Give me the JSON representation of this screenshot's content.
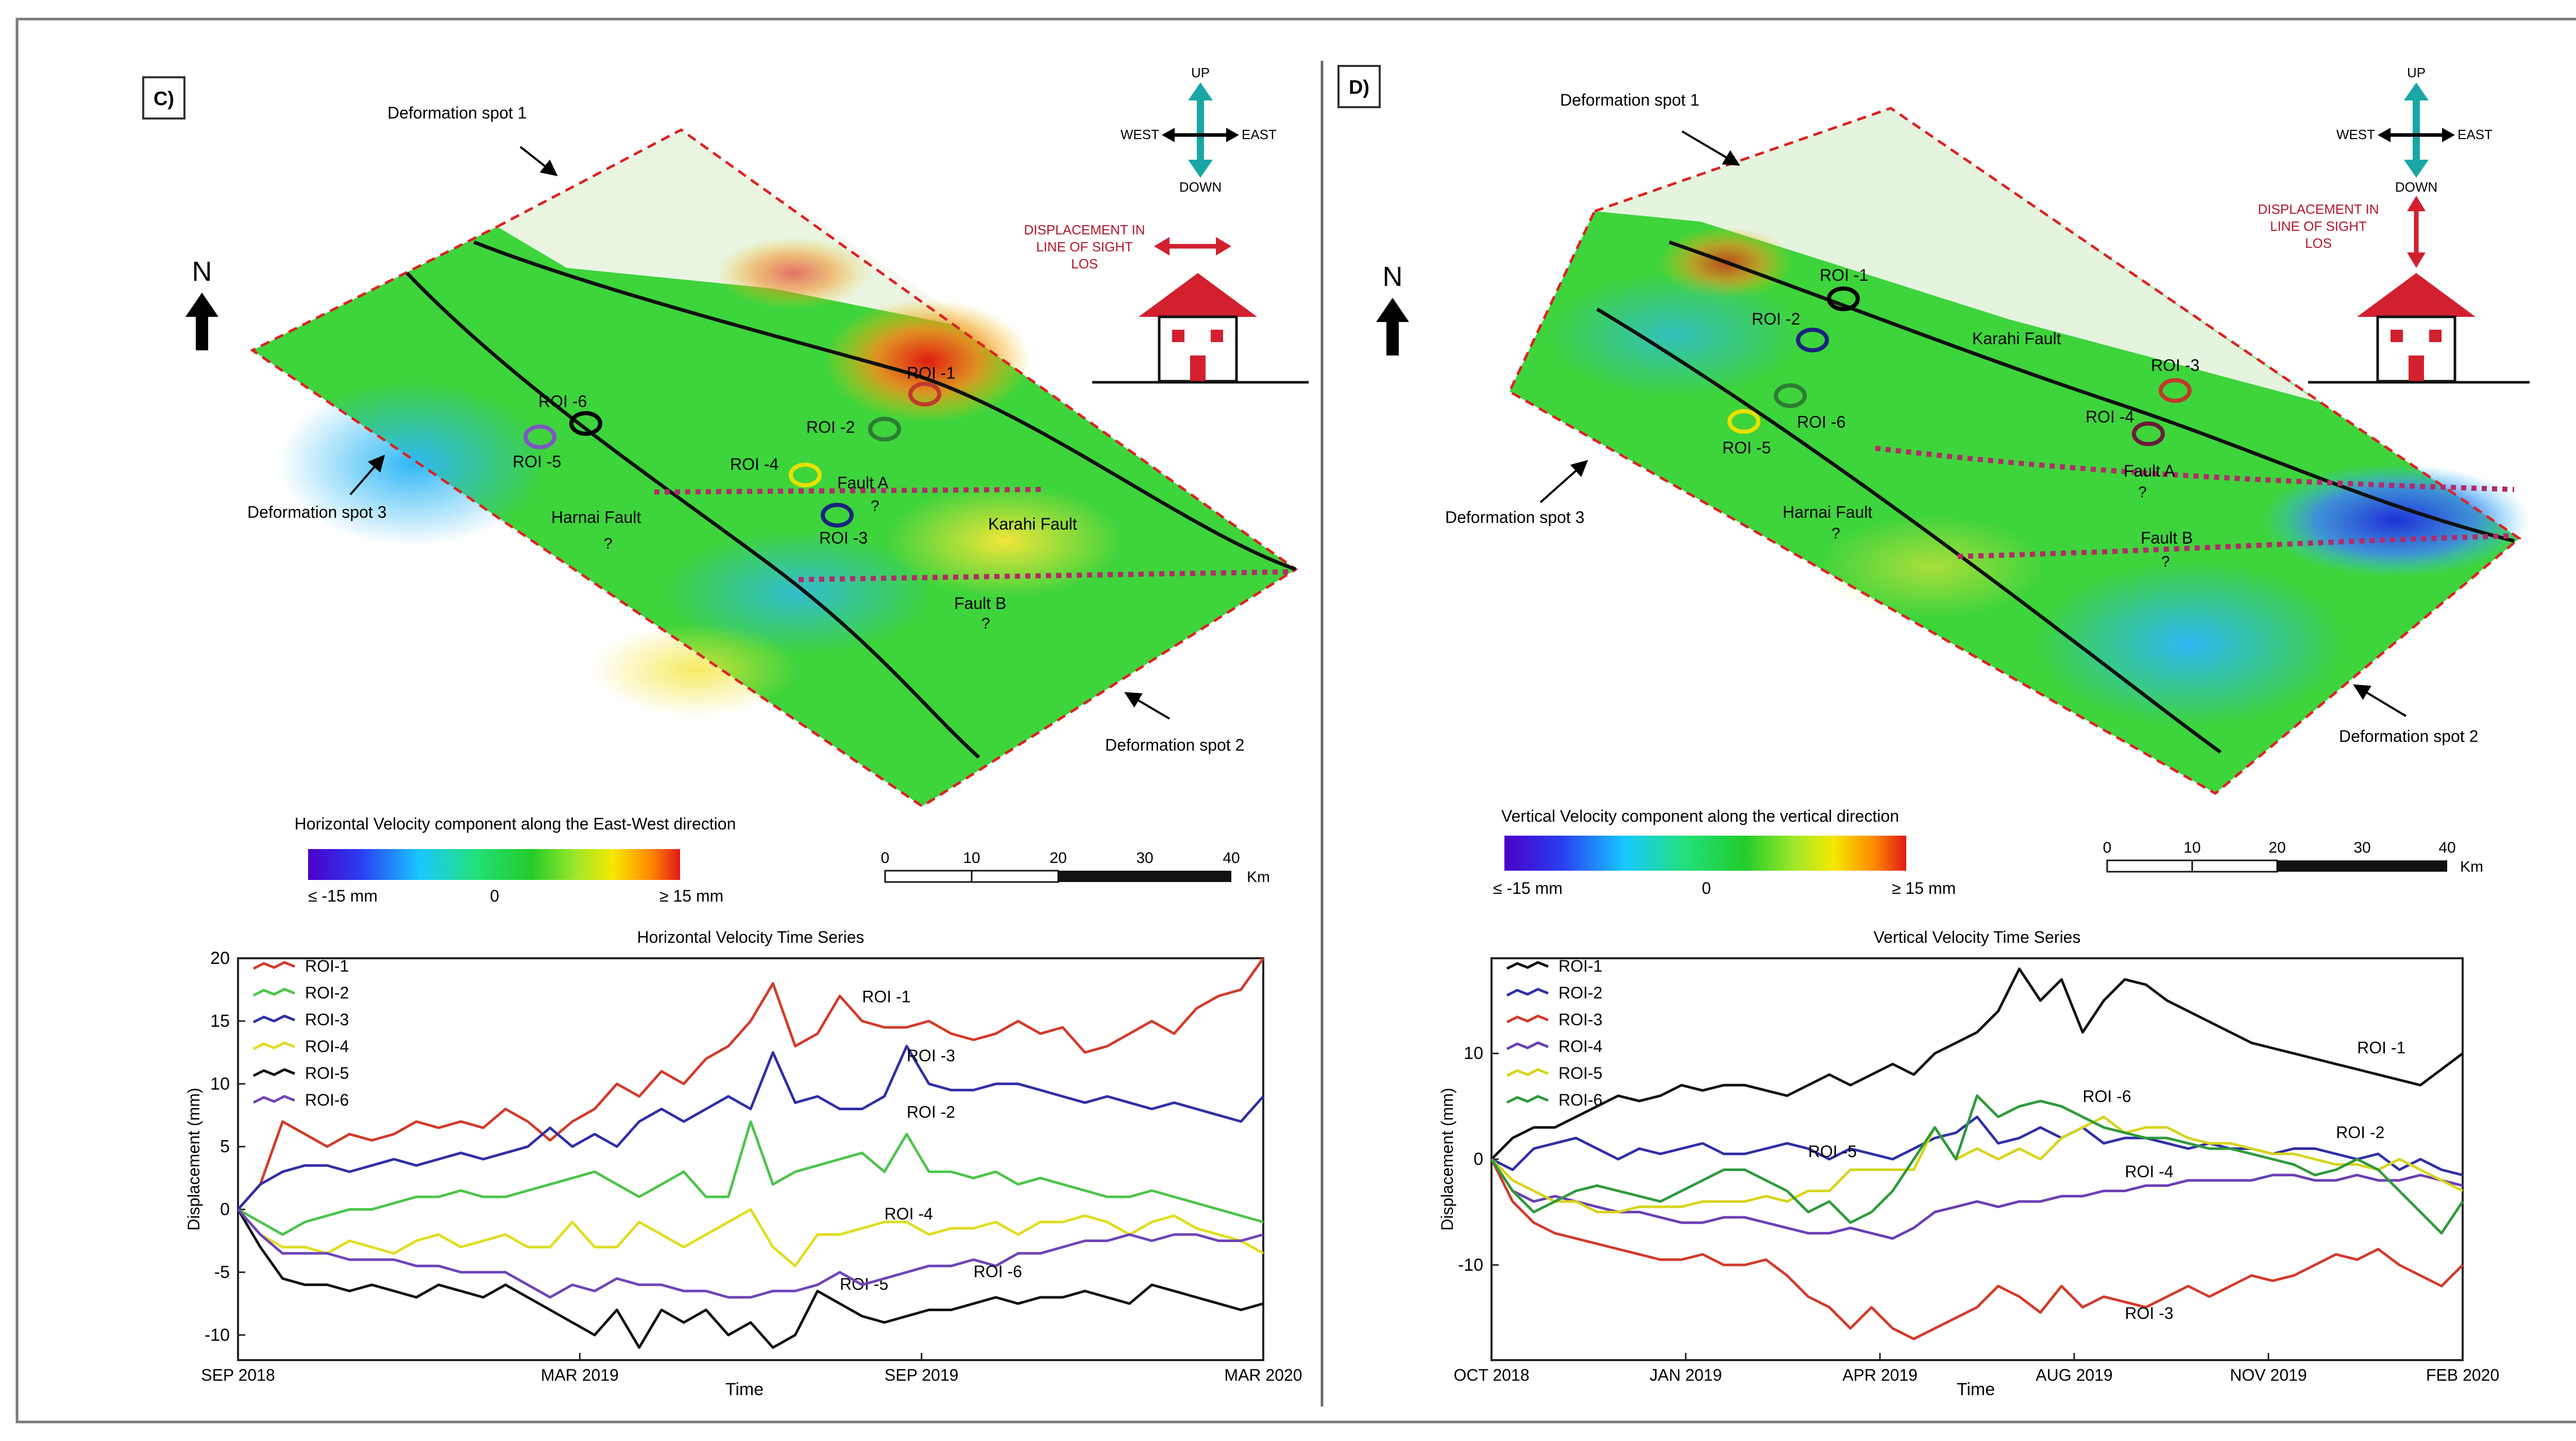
{
  "panels": {
    "left": {
      "label": "C)",
      "spots": {
        "s1": "Deformation spot 1",
        "s2": "Deformation spot 2",
        "s3": "Deformation spot 3"
      },
      "north": "N",
      "compass": {
        "up": "UP",
        "down": "DOWN",
        "west": "WEST",
        "east": "EAST"
      },
      "los": {
        "line1": "DISPLACEMENT IN",
        "line2": "LINE OF SIGHT",
        "line3": "LOS"
      },
      "faults": {
        "karahi": "Karahi Fault",
        "harnai": "Harnai Fault",
        "faultA": "Fault A",
        "faultB": "Fault B",
        "q": "?"
      },
      "rois": {
        "r1": "ROI -1",
        "r2": "ROI -2",
        "r3": "ROI -3",
        "r4": "ROI -4",
        "r5": "ROI -5",
        "r6": "ROI -6"
      },
      "colorbar": {
        "title": "Horizontal Velocity component along the East-West direction",
        "min": "≤ -15 mm",
        "mid": "0",
        "max": "≥ 15 mm"
      },
      "scale": {
        "t0": "0",
        "t1": "10",
        "t2": "20",
        "t3": "30",
        "t4": "40",
        "unit": "Km"
      },
      "colors": {
        "roi1": "#c0392b",
        "roi2": "#2e7d32",
        "roi3": "#1a237e",
        "roi4": "#f1f000",
        "roi5": "#7e57c2",
        "roi6": "#000000"
      }
    },
    "right": {
      "label": "D)",
      "spots": {
        "s1": "Deformation spot 1",
        "s2": "Deformation spot 2",
        "s3": "Deformation spot 3"
      },
      "north": "N",
      "compass": {
        "up": "UP",
        "down": "DOWN",
        "west": "WEST",
        "east": "EAST"
      },
      "los": {
        "line1": "DISPLACEMENT IN",
        "line2": "LINE OF SIGHT",
        "line3": "LOS"
      },
      "faults": {
        "karahi": "Karahi Fault",
        "harnai": "Harnai Fault",
        "faultA": "Fault A",
        "faultB": "Fault B",
        "q": "?"
      },
      "rois": {
        "r1": "ROI -1",
        "r2": "ROI -2",
        "r3": "ROI -3",
        "r4": "ROI -4",
        "r5": "ROI -5",
        "r6": "ROI -6"
      },
      "colorbar": {
        "title": "Vertical Velocity component along the vertical direction",
        "min": "≤ -15 mm",
        "mid": "0",
        "max": "≥ 15 mm"
      },
      "scale": {
        "t0": "0",
        "t1": "10",
        "t2": "20",
        "t3": "30",
        "t4": "40",
        "unit": "Km"
      },
      "colors": {
        "roi1": "#000000",
        "roi2": "#1a237e",
        "roi3": "#c0392b",
        "roi4": "#6a3fb5",
        "roi5": "#c9c000",
        "roi6": "#2e7d32"
      }
    }
  },
  "chart_data": [
    {
      "type": "line",
      "title": "Horizontal Velocity Time Series",
      "xlabel": "Time",
      "ylabel": "Displacement (mm)",
      "ylim": [
        -12,
        20
      ],
      "yticks": [
        -10,
        -5,
        0,
        5,
        10,
        15,
        20
      ],
      "xticks": [
        "SEP 2018",
        "MAR 2019",
        "SEP 2019",
        "MAR 2020"
      ],
      "n_points": 47,
      "legend_position": "top-left",
      "series": [
        {
          "name": "ROI-1",
          "color": "#d23a2a",
          "end_label": "ROI -1",
          "label_index": 28,
          "label_offset": 1.5,
          "values": [
            0,
            2,
            7,
            6,
            5,
            6,
            5.5,
            6,
            7,
            6.5,
            7,
            6.5,
            8,
            7,
            5.5,
            7,
            8,
            10,
            9,
            11,
            10,
            12,
            13,
            15,
            18,
            13,
            14,
            17,
            15,
            14.5,
            14.5,
            15,
            14,
            13.5,
            14,
            15,
            14,
            14.5,
            12.5,
            13,
            14,
            15,
            14,
            16,
            17,
            17.5,
            20
          ]
        },
        {
          "name": "ROI-2",
          "color": "#4cc44a",
          "end_label": "ROI -2",
          "label_index": 30,
          "label_offset": 1.3,
          "values": [
            0,
            -1,
            -2,
            -1,
            -0.5,
            0,
            0,
            0.5,
            1,
            1,
            1.5,
            1,
            1,
            1.5,
            2,
            2.5,
            3,
            2,
            1,
            2,
            3,
            1,
            1,
            7,
            2,
            3,
            3.5,
            4,
            4.5,
            3,
            6,
            3,
            3,
            2.5,
            3,
            2,
            2.5,
            2,
            1.5,
            1,
            1,
            1.5,
            1,
            0.5,
            0,
            -0.5,
            -1
          ]
        },
        {
          "name": "ROI-3",
          "color": "#2f2fa6",
          "end_label": "ROI -3",
          "label_index": 30,
          "label_offset": -1.2,
          "values": [
            0,
            2,
            3,
            3.5,
            3.5,
            3,
            3.5,
            4,
            3.5,
            4,
            4.5,
            4,
            4.5,
            5,
            6.5,
            5,
            6,
            5,
            7,
            8,
            7,
            8,
            9,
            8,
            12.5,
            8.5,
            9,
            8,
            8,
            9,
            13,
            10,
            9.5,
            9.5,
            10,
            10,
            9.5,
            9,
            8.5,
            9,
            8.5,
            8,
            8.5,
            8,
            7.5,
            7,
            9
          ]
        },
        {
          "name": "ROI-4",
          "color": "#e0dd1f",
          "end_label": "ROI -4",
          "label_index": 29,
          "label_offset": 0.2,
          "values": [
            0,
            -2,
            -3,
            -3,
            -3.5,
            -2.5,
            -3,
            -3.5,
            -2.5,
            -2,
            -3,
            -2.5,
            -2,
            -3,
            -3,
            -1,
            -3,
            -3,
            -1,
            -2,
            -3,
            -2,
            -1,
            0,
            -3,
            -4.5,
            -2,
            -2,
            -1.5,
            -1,
            -1,
            -2,
            -1.5,
            -1.5,
            -1,
            -2,
            -1,
            -1,
            -0.5,
            -1,
            -2,
            -1,
            -0.5,
            -1.5,
            -2,
            -2.5,
            -3.5
          ]
        },
        {
          "name": "ROI-5",
          "color": "#111111",
          "end_label": "ROI -5",
          "label_index": 27,
          "label_offset": 1.1,
          "values": [
            0,
            -3,
            -5.5,
            -6,
            -6,
            -6.5,
            -6,
            -6.5,
            -7,
            -6,
            -6.5,
            -7,
            -6,
            -7,
            -8,
            -9,
            -10,
            -8,
            -11,
            -8,
            -9,
            -8,
            -10,
            -9,
            -11,
            -10,
            -6.5,
            -7.5,
            -8.5,
            -9,
            -8.5,
            -8,
            -8,
            -7.5,
            -7,
            -7.5,
            -7,
            -7,
            -6.5,
            -7,
            -7.5,
            -6,
            -6.5,
            -7,
            -7.5,
            -8,
            -7.5
          ]
        },
        {
          "name": "ROI-6",
          "color": "#6e44b8",
          "end_label": "ROI -6",
          "label_index": 33,
          "label_offset": -1.4,
          "values": [
            0,
            -2,
            -3.5,
            -3.5,
            -3.5,
            -4,
            -4,
            -4,
            -4.5,
            -4.5,
            -5,
            -5,
            -5,
            -6,
            -7,
            -6,
            -6.5,
            -5.5,
            -6,
            -6,
            -6.5,
            -6.5,
            -7,
            -7,
            -6.5,
            -6.5,
            -6,
            -5,
            -6,
            -5.5,
            -5,
            -4.5,
            -4.5,
            -4,
            -4.5,
            -3.5,
            -3.5,
            -3,
            -2.5,
            -2.5,
            -2,
            -2.5,
            -2,
            -2,
            -2.5,
            -2.5,
            -2
          ]
        }
      ]
    },
    {
      "type": "line",
      "title": "Vertical Velocity Time Series",
      "xlabel": "Time",
      "ylabel": "Displacement (mm)",
      "ylim": [
        -19,
        19
      ],
      "yticks": [
        -10,
        0,
        10
      ],
      "xticks": [
        "OCT 2018",
        "JAN 2019",
        "APR 2019",
        "AUG 2019",
        "NOV 2019",
        "FEB 2020"
      ],
      "n_points": 47,
      "legend_position": "top-left",
      "series": [
        {
          "name": "ROI-1",
          "color": "#111111",
          "end_label": "ROI -1",
          "label_index": 41,
          "label_offset": 1.5,
          "values": [
            0,
            2,
            3,
            3,
            4,
            5,
            6,
            5.5,
            6,
            7,
            6.5,
            7,
            7,
            6.5,
            6,
            7,
            8,
            7,
            8,
            9,
            8,
            10,
            11,
            12,
            14,
            18,
            15,
            17,
            12,
            15,
            17,
            16.5,
            15,
            14,
            13,
            12,
            11,
            10.5,
            10,
            9.5,
            9,
            8.5,
            8,
            7.5,
            7,
            8.5,
            10
          ]
        },
        {
          "name": "ROI-2",
          "color": "#2f2fa6",
          "end_label": "ROI -2",
          "label_index": 40,
          "label_offset": 1.5,
          "values": [
            0,
            -1,
            1,
            1.5,
            2,
            1,
            0,
            1,
            0.5,
            1,
            1.5,
            0.5,
            0.5,
            1,
            1.5,
            1,
            0,
            1,
            0.5,
            0,
            1,
            2,
            2.5,
            4,
            1.5,
            2,
            3,
            2,
            3,
            1.5,
            2,
            2,
            1.5,
            1,
            1.5,
            1,
            1,
            0.5,
            1,
            1,
            0.5,
            0,
            0.5,
            -1,
            0,
            -1,
            -1.5
          ]
        },
        {
          "name": "ROI-3",
          "color": "#d23a2a",
          "end_label": "ROI -3",
          "label_index": 30,
          "label_offset": -1.6,
          "values": [
            0,
            -4,
            -6,
            -7,
            -7.5,
            -8,
            -8.5,
            -9,
            -9.5,
            -9.5,
            -9,
            -10,
            -10,
            -9.5,
            -11,
            -13,
            -14,
            -16,
            -14,
            -16,
            -17,
            -16,
            -15,
            -14,
            -12,
            -13,
            -14.5,
            -12,
            -14,
            -13,
            -13.5,
            -14,
            -13,
            -12,
            -13,
            -12,
            -11,
            -11.5,
            -11,
            -10,
            -9,
            -9.5,
            -8.5,
            -10,
            -11,
            -12,
            -10
          ]
        },
        {
          "name": "ROI-4",
          "color": "#6a3fb5",
          "end_label": "ROI -4",
          "label_index": 30,
          "label_offset": 1.3,
          "values": [
            0,
            -3,
            -4,
            -3.5,
            -4,
            -4.5,
            -5,
            -5,
            -5.5,
            -6,
            -6,
            -5.5,
            -5.5,
            -6,
            -6.5,
            -7,
            -7,
            -6.5,
            -7,
            -7.5,
            -6.5,
            -5,
            -4.5,
            -4,
            -4.5,
            -4,
            -4,
            -3.5,
            -3.5,
            -3,
            -3,
            -2.5,
            -2.5,
            -2,
            -2,
            -2,
            -2,
            -1.5,
            -1.5,
            -2,
            -2,
            -1.5,
            -2,
            -2,
            -1.5,
            -2,
            -2.5
          ]
        },
        {
          "name": "ROI-5",
          "color": "#d8d41c",
          "end_label": "ROI -5",
          "label_index": 15,
          "label_offset": 3.2,
          "values": [
            0,
            -2,
            -3,
            -4,
            -4,
            -5,
            -5,
            -4.5,
            -4.5,
            -4.5,
            -4,
            -4,
            -4,
            -3.5,
            -4,
            -3,
            -3,
            -1,
            -1,
            -1,
            -1,
            3,
            0,
            1,
            0,
            1,
            0,
            2,
            3,
            4,
            2.5,
            3,
            3,
            2,
            1.5,
            1.5,
            1,
            0.5,
            0.5,
            0,
            -0.5,
            -0.5,
            -1,
            0,
            -1,
            -2,
            -3
          ]
        },
        {
          "name": "ROI-6",
          "color": "#2e9a3a",
          "end_label": "ROI -6",
          "label_index": 28,
          "label_offset": 1.4,
          "values": [
            0,
            -3,
            -5,
            -4,
            -3,
            -2.5,
            -3,
            -3.5,
            -4,
            -3,
            -2,
            -1,
            -1,
            -2,
            -3,
            -5,
            -4,
            -6,
            -5,
            -3,
            0,
            3,
            0,
            6,
            4,
            5,
            5.5,
            5,
            4,
            3,
            2.5,
            2,
            2,
            1.5,
            1,
            1,
            0.5,
            0,
            -0.5,
            -1.5,
            -1,
            0,
            -1,
            -3,
            -5,
            -7,
            -4
          ]
        }
      ]
    }
  ]
}
